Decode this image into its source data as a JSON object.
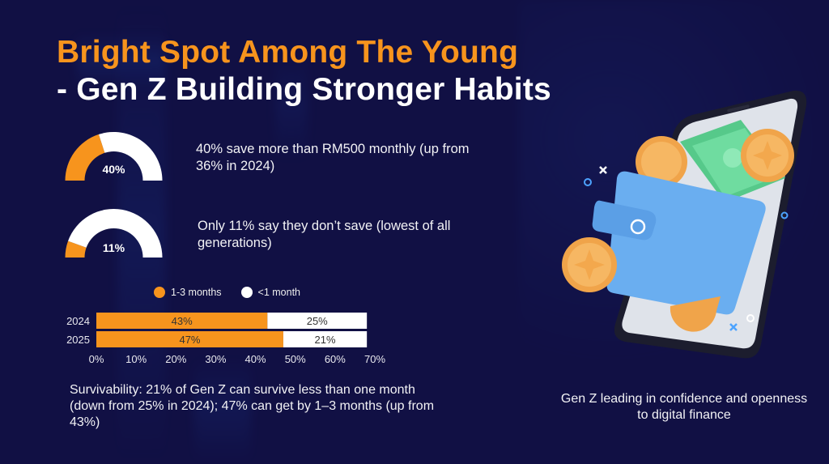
{
  "title": {
    "line1": "Bright Spot Among The Young",
    "line2": "- Gen Z Building Stronger Habits"
  },
  "colors": {
    "background": "#111044",
    "accent_orange": "#f7941d",
    "white": "#ffffff"
  },
  "gauges": [
    {
      "value_percent": 40,
      "label": "40%",
      "description": "40% save more than RM500 monthly (up from 36% in 2024)"
    },
    {
      "value_percent": 11,
      "label": "11%",
      "description": "Only 11% say they don’t save (lowest of all generations)"
    }
  ],
  "chart_data": {
    "type": "bar",
    "orientation": "horizontal",
    "stacked": true,
    "title": "",
    "categories": [
      "2024",
      "2025"
    ],
    "series": [
      {
        "name": "1-3 months",
        "color": "#f7941d",
        "values": [
          43,
          47
        ],
        "labels": [
          "43%",
          "47%"
        ]
      },
      {
        "name": "<1 month",
        "color": "#ffffff",
        "values": [
          25,
          21
        ],
        "labels": [
          "25%",
          "21%"
        ]
      }
    ],
    "xlim": [
      0,
      70
    ],
    "xticks": [
      0,
      10,
      20,
      30,
      40,
      50,
      60,
      70
    ],
    "xtick_labels": [
      "0%",
      "10%",
      "20%",
      "30%",
      "40%",
      "50%",
      "60%",
      "70%"
    ],
    "xlabel": "",
    "ylabel": "",
    "legend_position": "top",
    "grid": false
  },
  "survivability_text": "Survivability: 21% of Gen Z can survive less than one month (down from 25% in 2024); 47% can get by 1–3 months (up from 43%)",
  "illustration": {
    "caption": "Gen Z leading in confidence and openness to digital finance",
    "icons": [
      "smartphone-icon",
      "wallet-icon",
      "coin-icon",
      "banknote-icon"
    ]
  }
}
